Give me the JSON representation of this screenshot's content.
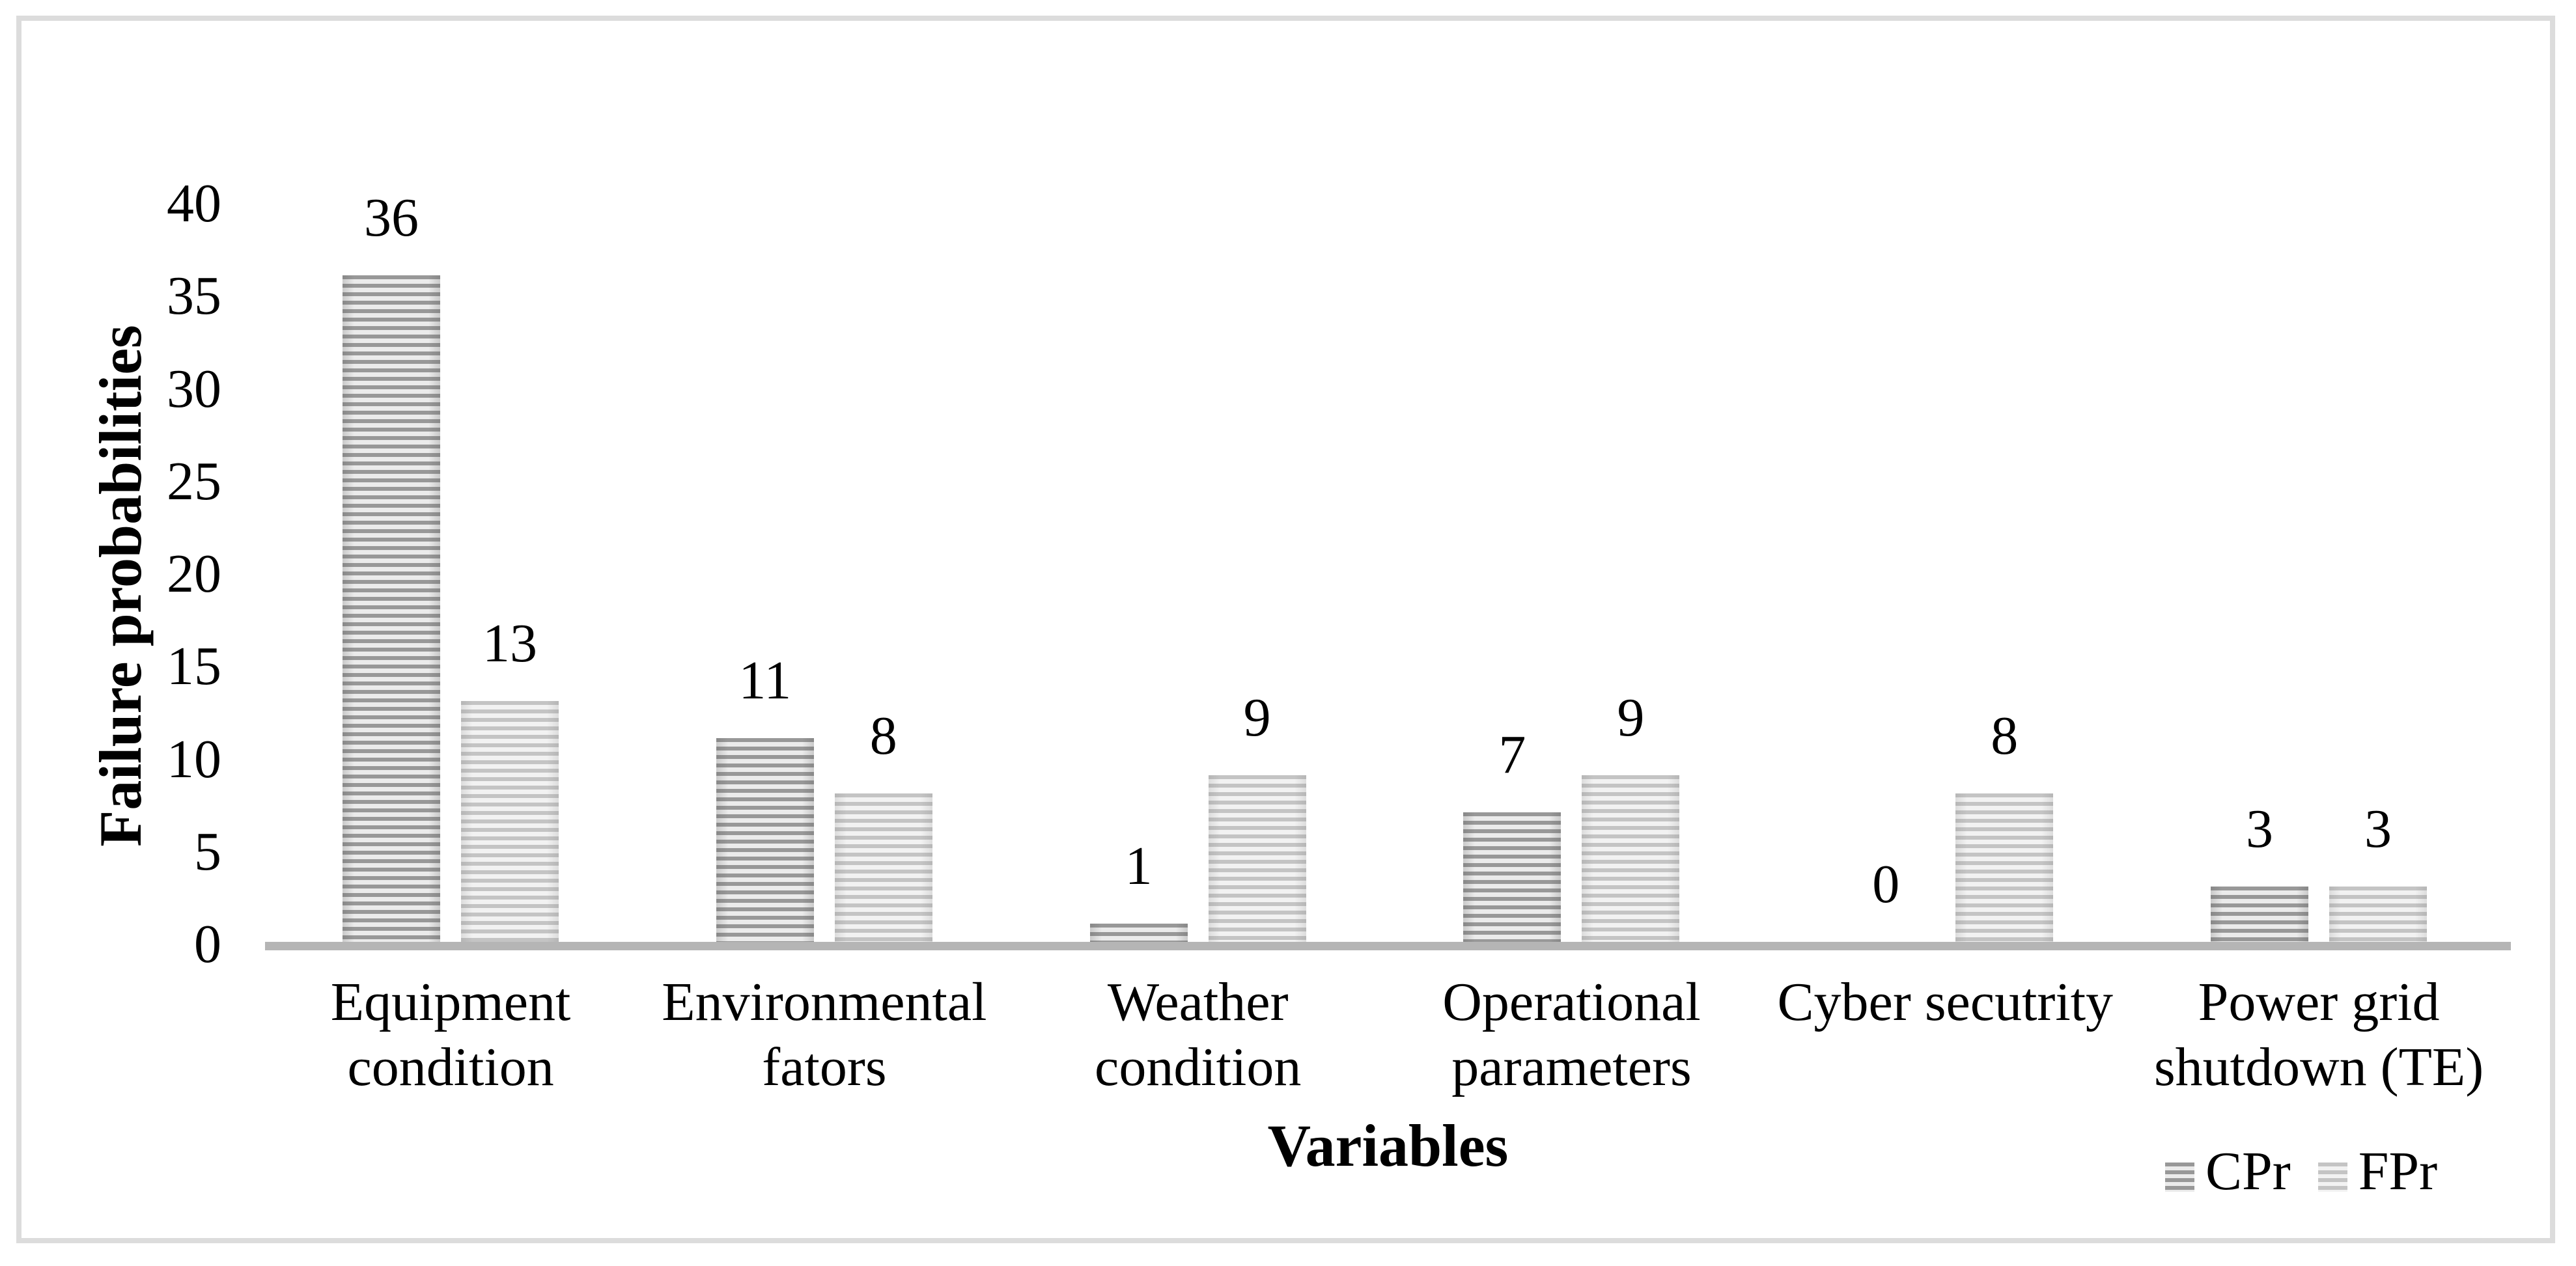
{
  "chart_data": {
    "type": "bar",
    "title": "",
    "xlabel": "Variables",
    "ylabel": "Failure probabilities",
    "categories": [
      "Equipment condition",
      "Environmental fators",
      "Weather condition",
      "Operational parameters",
      "Cyber secutrity",
      "Power grid shutdown (TE)"
    ],
    "series": [
      {
        "name": "CPr",
        "values": [
          36,
          11,
          1,
          7,
          0,
          3
        ]
      },
      {
        "name": "FPr",
        "values": [
          13,
          8,
          9,
          9,
          8,
          3
        ]
      }
    ],
    "ylim": [
      0,
      40
    ],
    "yticks": [
      0,
      5,
      10,
      15,
      20,
      25,
      30,
      35,
      40
    ],
    "grid": false,
    "data_labels": true,
    "legend_position": "bottom-right",
    "colors": {
      "cpr_stripe_dark": "#989898",
      "cpr_stripe_light": "#ebebeb",
      "fpr_stripe_dark": "#c4c4c4",
      "fpr_stripe_light": "#f2f2f2",
      "axis_line": "#b5b5b5",
      "frame_border": "#dcdcdc",
      "text": "#000000"
    }
  }
}
